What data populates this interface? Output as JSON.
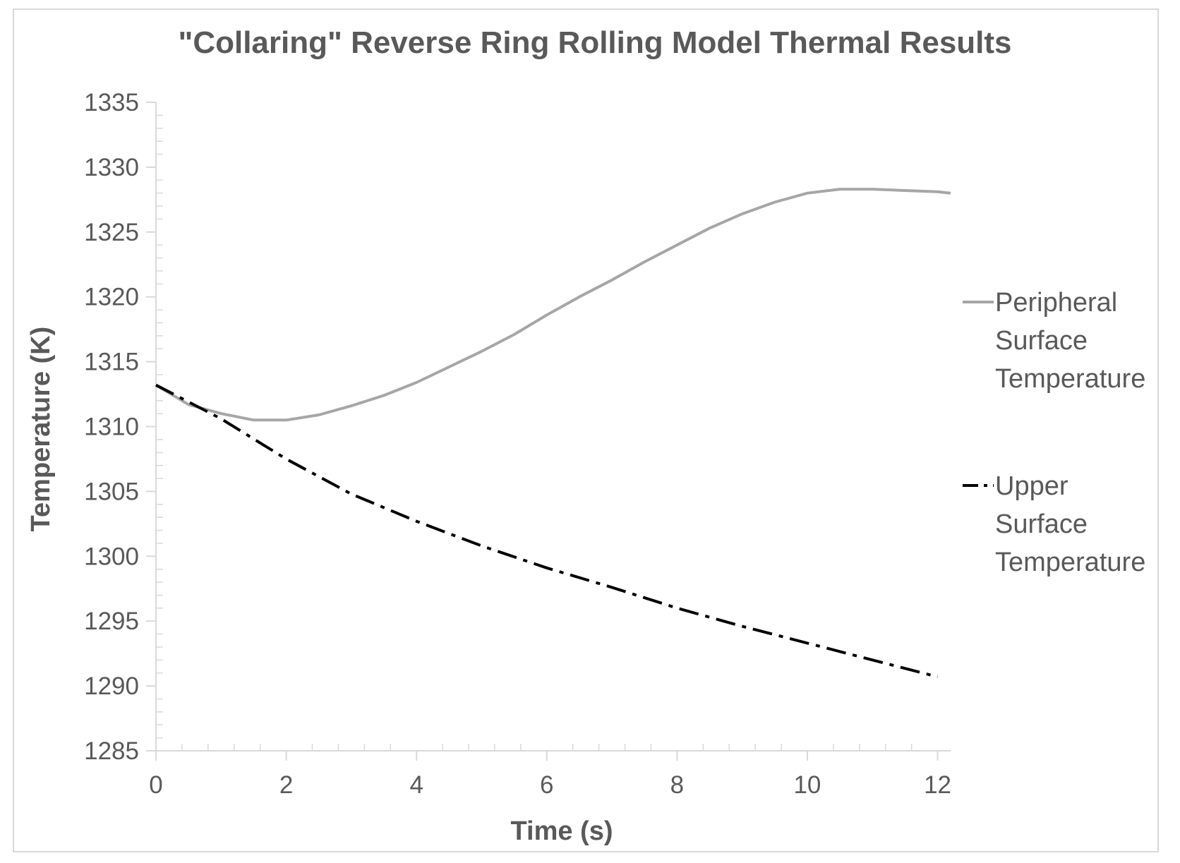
{
  "chart_data": {
    "type": "line",
    "title": "\"Collaring\" Reverse Ring Rolling Model Thermal Results",
    "xlabel": "Time (s)",
    "ylabel": "Temperature (K)",
    "xlim": [
      0,
      12.2
    ],
    "ylim": [
      1285,
      1335
    ],
    "xticks": [
      0,
      2,
      4,
      6,
      8,
      10,
      12
    ],
    "yticks": [
      1285,
      1290,
      1295,
      1300,
      1305,
      1310,
      1315,
      1320,
      1325,
      1330,
      1335
    ],
    "grid": false,
    "legend_position": "right",
    "series": [
      {
        "name": "Peripheral Surface Temperature",
        "legend_lines": [
          "Peripheral",
          "Surface",
          "Temperature"
        ],
        "color": "#a6a6a6",
        "style": "solid",
        "x": [
          0,
          0.5,
          1,
          1.5,
          2,
          2.5,
          3,
          3.5,
          4,
          4.5,
          5,
          5.5,
          6,
          6.5,
          7,
          7.5,
          8,
          8.5,
          9,
          9.5,
          10,
          10.5,
          11,
          11.5,
          12,
          12.2
        ],
        "y": [
          1313.2,
          1311.7,
          1311.0,
          1310.5,
          1310.5,
          1310.9,
          1311.6,
          1312.4,
          1313.4,
          1314.6,
          1315.8,
          1317.1,
          1318.6,
          1320.0,
          1321.3,
          1322.7,
          1324.0,
          1325.3,
          1326.4,
          1327.3,
          1328.0,
          1328.3,
          1328.3,
          1328.2,
          1328.1,
          1328.0
        ]
      },
      {
        "name": "Upper Surface Temperature",
        "legend_lines": [
          "Upper",
          "Surface",
          "Temperature"
        ],
        "color": "#000000",
        "style": "dash-dot",
        "x": [
          0,
          1,
          2,
          3,
          4,
          5,
          6,
          7,
          8,
          9,
          10,
          11,
          12
        ],
        "y": [
          1313.2,
          1310.6,
          1307.5,
          1304.8,
          1302.7,
          1300.8,
          1299.1,
          1297.6,
          1296.0,
          1294.6,
          1293.3,
          1292.0,
          1290.7
        ]
      }
    ]
  }
}
